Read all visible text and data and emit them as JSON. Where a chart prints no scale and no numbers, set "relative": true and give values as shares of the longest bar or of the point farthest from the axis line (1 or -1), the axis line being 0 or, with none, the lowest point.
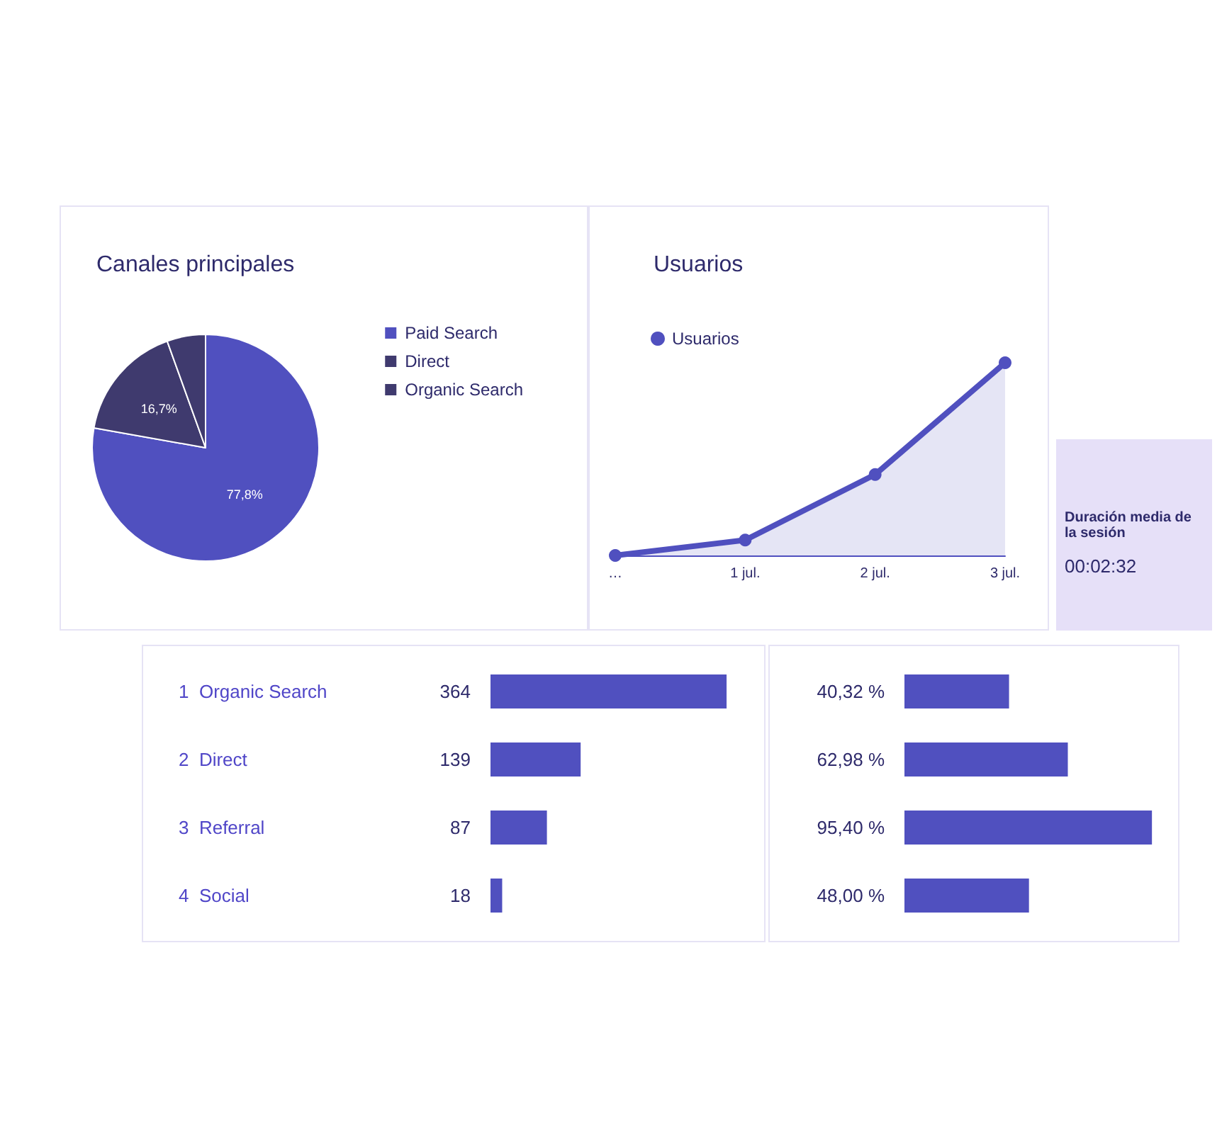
{
  "chart_data": [
    {
      "type": "pie",
      "title": "Canales principales",
      "categories": [
        "Paid Search",
        "Direct",
        "Organic Search"
      ],
      "values": [
        77.8,
        16.7,
        5.5
      ],
      "colors": [
        "#5050bf",
        "#3f3a6e",
        "#3f3a6e"
      ],
      "value_labels": [
        "77,8%",
        "16,7%",
        null
      ],
      "legend": "top right"
    },
    {
      "type": "area",
      "title": "Usuarios",
      "categories": [
        "…",
        "1 jul.",
        "2 jul.",
        "3 jul."
      ],
      "relative": true,
      "legend": "top left",
      "marker": "circle",
      "grid": false,
      "series": [
        {
          "name": "Usuarios",
          "color": "#5050bf",
          "values": [
            0,
            0.08,
            0.42,
            1
          ]
        }
      ]
    },
    {
      "type": "bar",
      "orientation": "horizontal",
      "categories": [
        "1  Organic Search",
        "2  Direct",
        "3  Referral",
        "4  Social"
      ],
      "values": [
        364,
        139,
        87,
        18
      ],
      "color": "#5050bf",
      "data_labels": true,
      "grid": false,
      "tick_labels": "y"
    },
    {
      "type": "bar",
      "orientation": "horizontal",
      "categories": [
        null,
        null,
        null,
        null
      ],
      "values": [
        40.32,
        62.98,
        95.4,
        48.0
      ],
      "color": "#5050bf",
      "value_labels": [
        "40,32 %",
        "62,98 %",
        "95,40 %",
        "48,00 %"
      ],
      "grid": false,
      "tick_labels": false,
      "annotations": [
        "Duración media de la sesión",
        "00:02:32"
      ]
    }
  ]
}
